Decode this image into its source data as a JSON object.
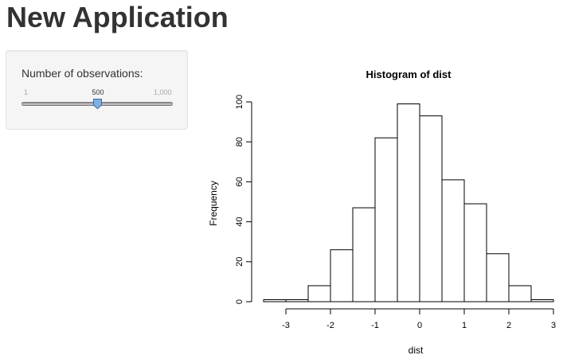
{
  "page": {
    "title": "New Application"
  },
  "sidebar": {
    "slider": {
      "label": "Number of observations:",
      "min_label": "1",
      "max_label": "1,000",
      "value_label": "500",
      "min": 1,
      "max": 1000,
      "value": 500
    }
  },
  "chart_data": {
    "type": "bar",
    "title": "Histogram of dist",
    "xlabel": "dist",
    "ylabel": "Frequency",
    "bin_edges": [
      -3.5,
      -3.0,
      -2.5,
      -2.0,
      -1.5,
      -1.0,
      -0.5,
      0.0,
      0.5,
      1.0,
      1.5,
      2.0,
      2.5,
      3.0
    ],
    "values": [
      1,
      1,
      8,
      26,
      47,
      82,
      99,
      93,
      61,
      49,
      24,
      8,
      1
    ],
    "xlim": [
      -3.5,
      3.0
    ],
    "ylim": [
      0,
      100
    ],
    "x_ticks": [
      -3,
      -2,
      -1,
      0,
      1,
      2,
      3
    ],
    "x_tick_labels": [
      "-3",
      "-2",
      "-1",
      "0",
      "1",
      "2",
      "3"
    ],
    "y_ticks": [
      0,
      20,
      40,
      60,
      80,
      100
    ],
    "y_tick_labels": [
      "0",
      "20",
      "40",
      "60",
      "80",
      "100"
    ],
    "grid": false,
    "bar_fill": "#ffffff",
    "bar_stroke": "#000000"
  },
  "colors": {
    "panel_background": "#f5f5f5",
    "slider_handle": "#7fb1e3",
    "title_text": "#333333"
  }
}
